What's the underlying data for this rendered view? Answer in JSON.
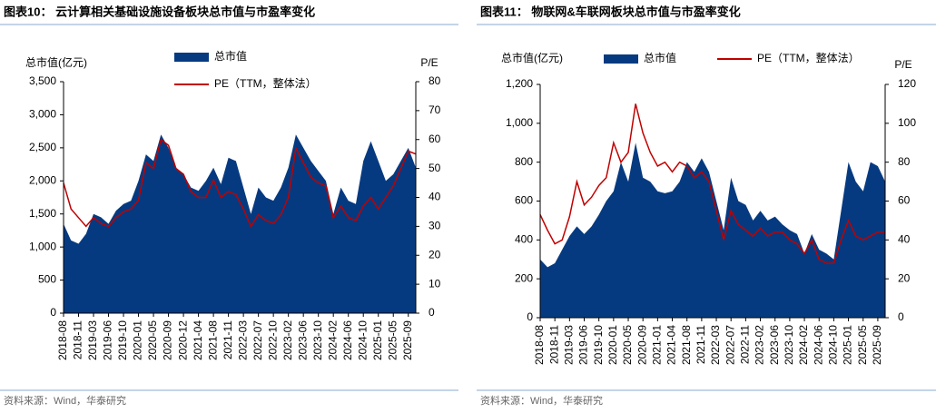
{
  "chart_data": [
    {
      "type": "combo",
      "title": "图表10：  云计算相关基础设施设备板块总市值与市盈率变化",
      "y_label": "总市值(亿元)",
      "y2_label": "P/E",
      "source": "资料来源：Wind，华泰研究",
      "legend_layout": "vertical",
      "categories": [
        "2018-08",
        null,
        "2018-11",
        null,
        "2019-03",
        null,
        "2019-06",
        null,
        "2019-10",
        null,
        "2020-01",
        null,
        "2020-05",
        null,
        "2020-09",
        null,
        "2020-12",
        null,
        "2021-04",
        null,
        "2021-08",
        null,
        "2021-11",
        null,
        "2022-03",
        null,
        "2022-07",
        null,
        "2022-10",
        null,
        "2023-02",
        null,
        "2023-06",
        null,
        "2023-10",
        null,
        "2024-02",
        null,
        "2024-06",
        null,
        "2024-10",
        null,
        "2025-01",
        null,
        "2025-05",
        null,
        "2025-09",
        null
      ],
      "ylim": [
        0,
        3500
      ],
      "yticks": [
        0,
        500,
        {
          "value": 1000,
          "label": "1,000"
        },
        {
          "value": 1500,
          "label": "1,500"
        },
        {
          "value": 2000,
          "label": "2,000"
        },
        {
          "value": 2500,
          "label": "2,500"
        },
        {
          "value": 3000,
          "label": "3,000"
        },
        {
          "value": 3500,
          "label": "3,500"
        }
      ],
      "y2lim": [
        0,
        80
      ],
      "y2ticks": [
        0,
        10,
        20,
        30,
        40,
        50,
        60,
        70,
        80
      ],
      "series": [
        {
          "name": "总市值",
          "type": "area",
          "color": "#063a80",
          "values": [
            1350,
            1100,
            1050,
            1200,
            1500,
            1450,
            1350,
            1550,
            1650,
            1700,
            2000,
            2400,
            2300,
            2700,
            2500,
            2200,
            2100,
            1900,
            1850,
            2000,
            2200,
            1950,
            2350,
            2300,
            1900,
            1500,
            1900,
            1750,
            1700,
            1900,
            2200,
            2700,
            2500,
            2300,
            2150,
            2000,
            1500,
            1900,
            1700,
            1650,
            2300,
            2600,
            2300,
            2000,
            2100,
            2300,
            2500,
            2200
          ]
        },
        {
          "name": "PE（TTM，整体法）",
          "type": "line",
          "axis": "y2",
          "color": "#c00000",
          "values": [
            45,
            36,
            33,
            30,
            33,
            31,
            30,
            33,
            35,
            36,
            39,
            52,
            50,
            60,
            58,
            50,
            48,
            42,
            40,
            40,
            46,
            40,
            42,
            41,
            36,
            30,
            34,
            32,
            31,
            34,
            40,
            57,
            52,
            47,
            45,
            44,
            33,
            37,
            33,
            32,
            37,
            40,
            36,
            40,
            44,
            50,
            56,
            55
          ]
        }
      ]
    },
    {
      "type": "combo",
      "title": "图表11：  物联网&车联网板块总市值与市盈率变化",
      "y_label": "总市值(亿元)",
      "y2_label": "P/E",
      "source": "资料来源：Wind，华泰研究",
      "legend_layout": "horizontal",
      "categories": [
        "2018-08",
        null,
        "2018-11",
        null,
        "2019-03",
        null,
        "2019-06",
        null,
        "2019-10",
        null,
        "2020-01",
        null,
        "2020-05",
        null,
        "2020-09",
        null,
        "2021-01",
        null,
        "2021-04",
        null,
        "2021-08",
        null,
        "2021-11",
        null,
        "2022-03",
        null,
        "2022-07",
        null,
        "2022-11",
        null,
        "2023-02",
        null,
        "2023-06",
        null,
        "2023-10",
        null,
        "2024-02",
        null,
        "2024-06",
        null,
        "2024-10",
        null,
        "2025-01",
        null,
        "2025-05",
        null,
        "2025-09",
        null
      ],
      "ylim": [
        0,
        1200
      ],
      "yticks": [
        0,
        200,
        400,
        600,
        800,
        {
          "value": 1000,
          "label": "1,000"
        },
        {
          "value": 1200,
          "label": "1,200"
        }
      ],
      "y2lim": [
        0,
        120
      ],
      "y2ticks": [
        0,
        20,
        40,
        60,
        80,
        100,
        120
      ],
      "series": [
        {
          "name": "总市值",
          "type": "area",
          "color": "#063a80",
          "values": [
            300,
            260,
            280,
            350,
            420,
            470,
            430,
            470,
            530,
            600,
            650,
            800,
            700,
            900,
            720,
            700,
            650,
            640,
            650,
            700,
            800,
            750,
            820,
            750,
            600,
            450,
            720,
            600,
            580,
            500,
            550,
            500,
            520,
            480,
            450,
            430,
            330,
            430,
            350,
            330,
            300,
            550,
            800,
            700,
            650,
            800,
            780,
            700
          ]
        },
        {
          "name": "PE（TTM，整体法）",
          "type": "line",
          "axis": "y2",
          "color": "#c00000",
          "values": [
            53,
            45,
            38,
            40,
            52,
            70,
            58,
            62,
            68,
            72,
            90,
            80,
            85,
            110,
            95,
            85,
            78,
            80,
            75,
            80,
            78,
            72,
            75,
            70,
            55,
            40,
            55,
            48,
            45,
            42,
            46,
            42,
            44,
            44,
            40,
            38,
            33,
            40,
            30,
            28,
            28,
            40,
            50,
            42,
            40,
            42,
            44,
            44
          ]
        }
      ]
    }
  ]
}
